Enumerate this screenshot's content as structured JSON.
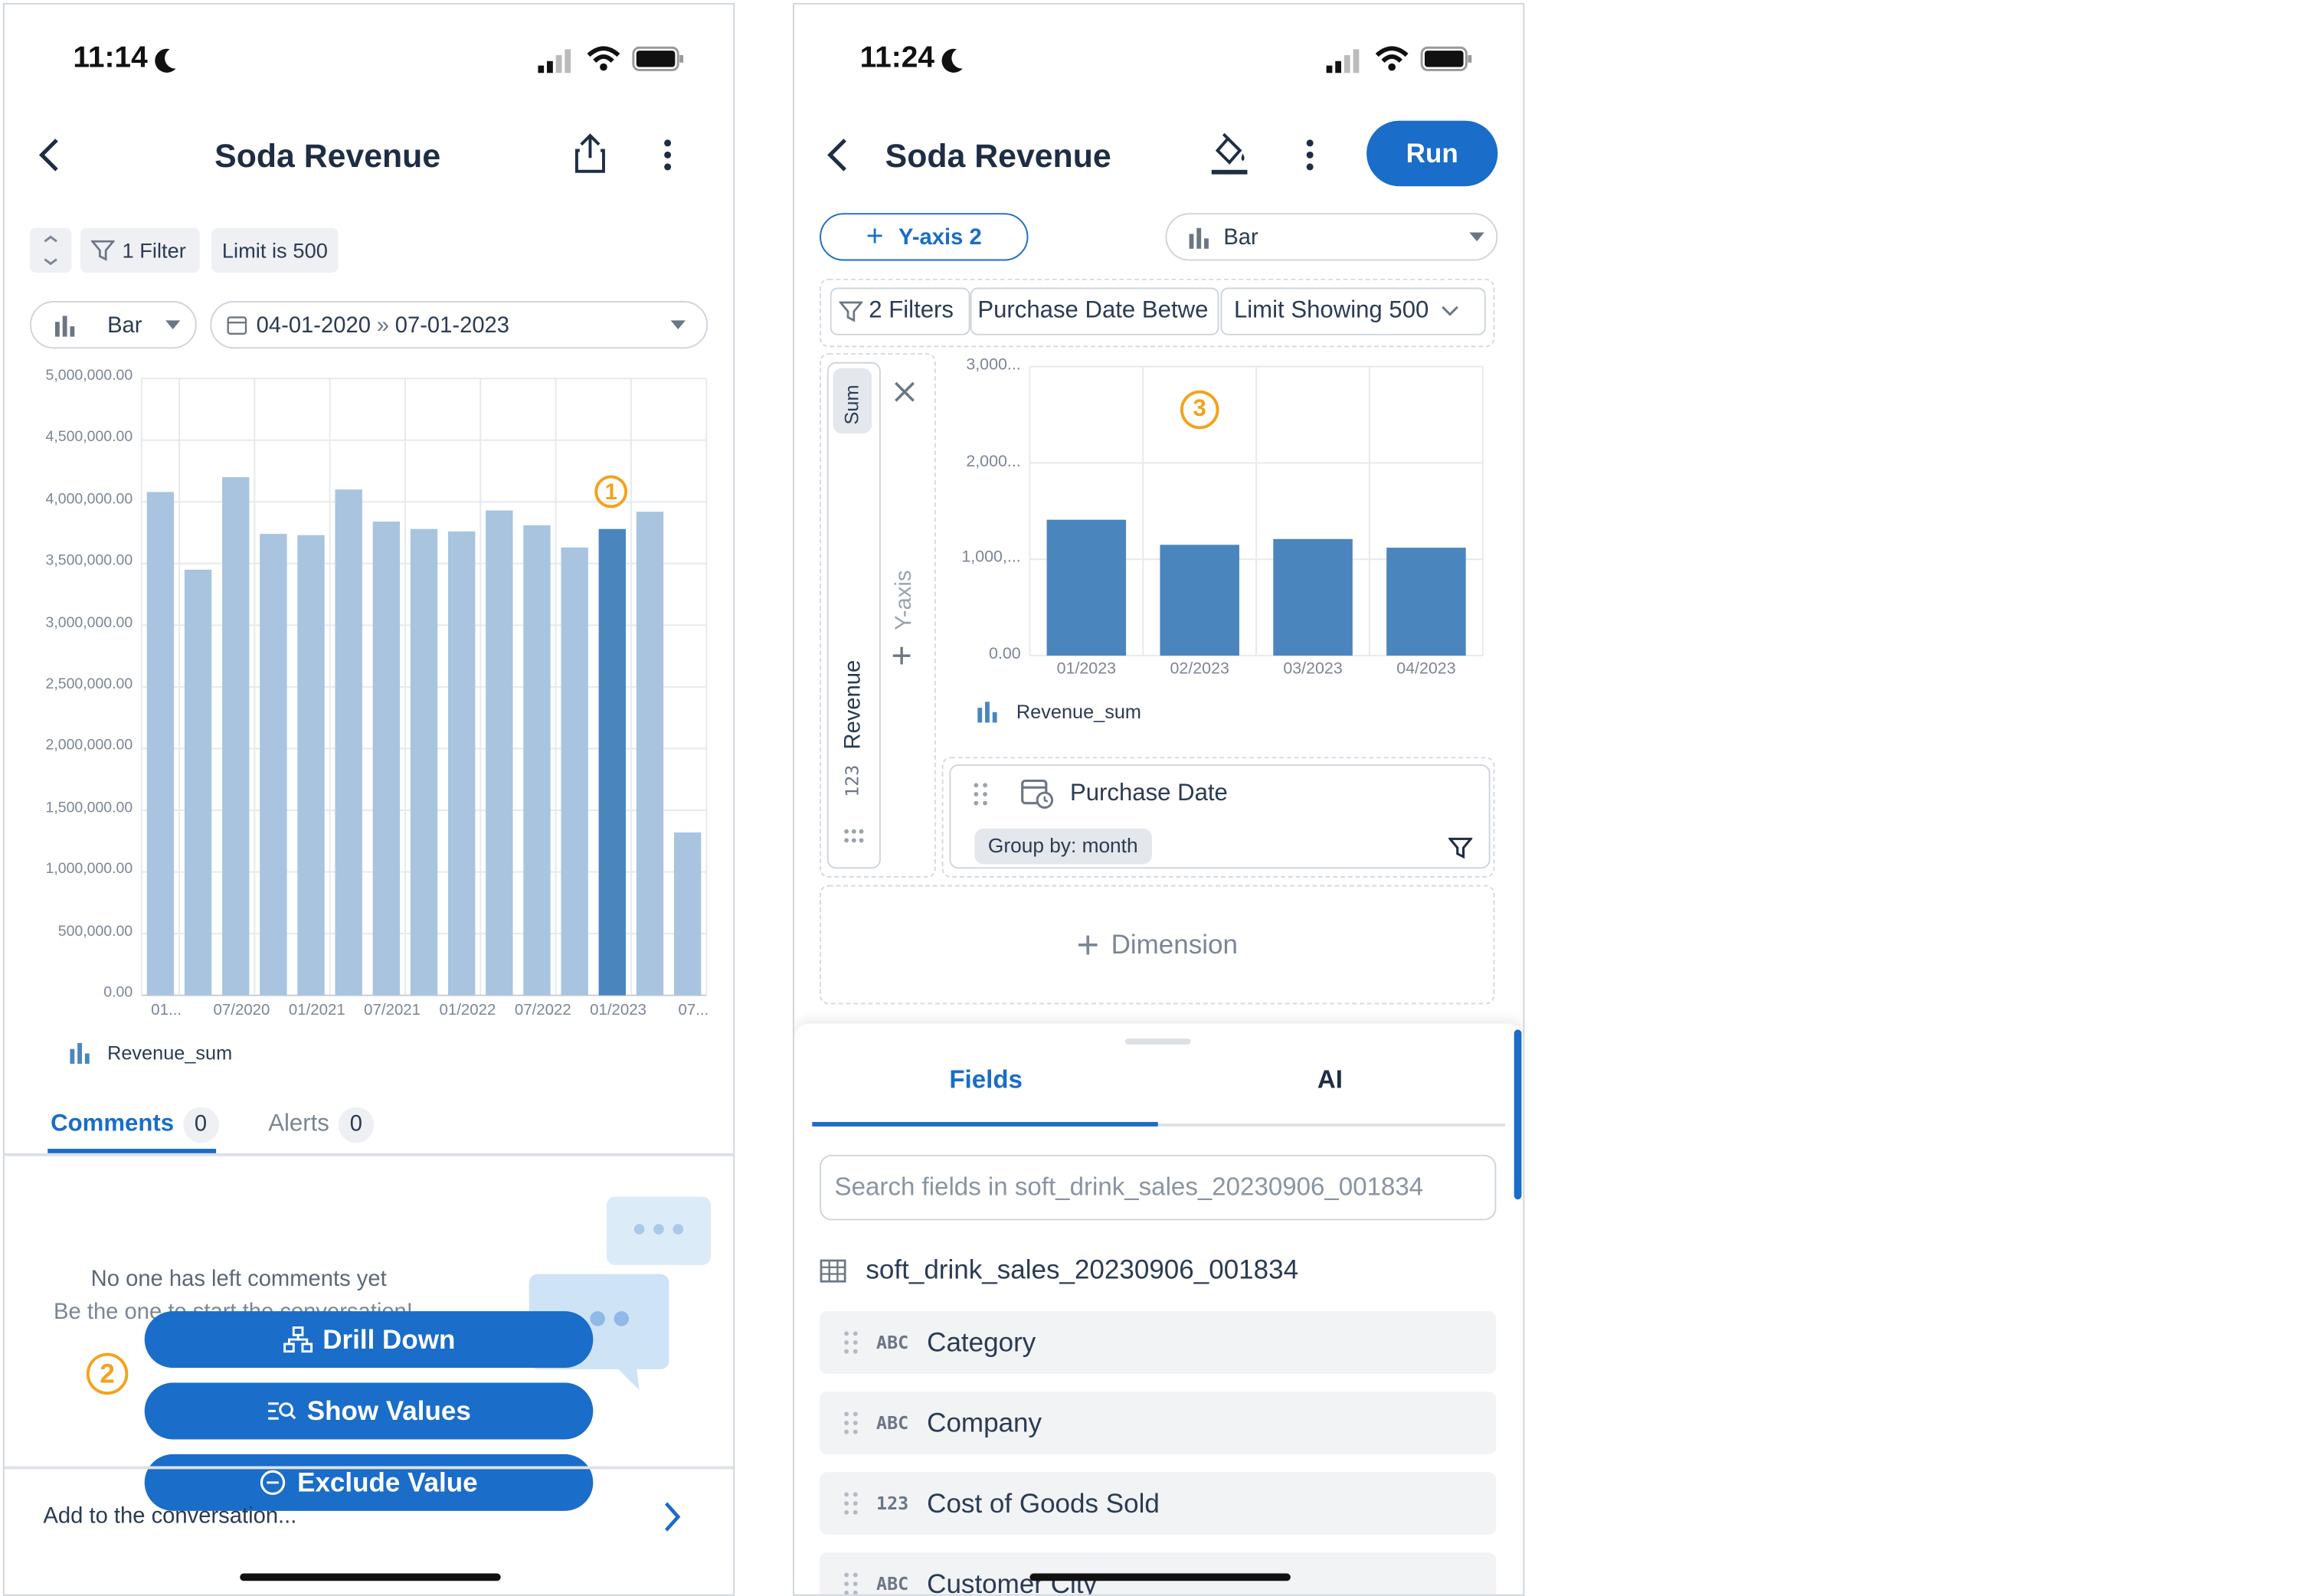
{
  "left": {
    "status_time": "11:14",
    "title": "Soda Revenue",
    "filter_chip": "1 Filter",
    "limit_prefix": "Limit is",
    "limit_value": "500",
    "chart_type": "Bar",
    "date_range_start": "04-01-2020",
    "date_range_end": "07-01-2023",
    "legend": "Revenue_sum",
    "tabs": [
      {
        "label": "Comments",
        "count": "0"
      },
      {
        "label": "Alerts",
        "count": "0"
      }
    ],
    "empty_title": "No one has left comments yet",
    "empty_sub": "Be the one to start the conversation!",
    "actions": [
      "Drill Down",
      "Show Values",
      "Exclude Value"
    ],
    "composer_placeholder": "Add to the conversation...",
    "annotations": [
      "1",
      "2"
    ]
  },
  "right": {
    "status_time": "11:24",
    "title": "Soda Revenue",
    "run_label": "Run",
    "y_axis_button": "Y-axis 2",
    "chart_type": "Bar",
    "filters_chip": "2 Filters",
    "filter_desc": "Purchase Date Betwe",
    "limit_chip": "Limit Showing 500",
    "measure_agg": "Sum",
    "measure_name": "Revenue",
    "measure_type": "123",
    "y_axis_label": "Y-axis",
    "legend": "Revenue_sum",
    "dimension_name": "Purchase Date",
    "group_by": "Group by: month",
    "add_dimension": "Dimension",
    "panel_tabs": [
      "Fields",
      "AI"
    ],
    "search_placeholder": "Search fields in soft_drink_sales_20230906_001834",
    "table_name": "soft_drink_sales_20230906_001834",
    "fields": [
      {
        "type": "ABC",
        "name": "Category"
      },
      {
        "type": "ABC",
        "name": "Company"
      },
      {
        "type": "123",
        "name": "Cost of Goods Sold"
      },
      {
        "type": "ABC",
        "name": "Customer City"
      }
    ],
    "annotation": "3"
  },
  "chart_data": [
    {
      "type": "bar",
      "series": [
        {
          "name": "Revenue_sum",
          "values": [
            4080000,
            3450000,
            4200000,
            3740000,
            3730000,
            4100000,
            3840000,
            3780000,
            3760000,
            3930000,
            3810000,
            3630000,
            3780000,
            3920000,
            1320000
          ]
        }
      ],
      "highlighted_index": 12,
      "x_tick_labels": [
        "01...",
        "07/2020",
        "01/2021",
        "07/2021",
        "01/2022",
        "07/2022",
        "01/2023",
        "07..."
      ],
      "y_tick_labels": [
        "5,000,000.00",
        "4,500,000.00",
        "4,000,000.00",
        "3,500,000.00",
        "3,000,000.00",
        "2,500,000.00",
        "2,000,000.00",
        "1,500,000.00",
        "1,000,000.00",
        "500,000.00",
        "0.00"
      ],
      "ylim": [
        0,
        5000000
      ],
      "grid": true,
      "legend": "bottom-left"
    },
    {
      "type": "bar",
      "categories": [
        "01/2023",
        "02/2023",
        "03/2023",
        "04/2023"
      ],
      "series": [
        {
          "name": "Revenue_sum",
          "values": [
            1410,
            1150,
            1210,
            1120
          ]
        }
      ],
      "y_tick_labels": [
        "3,000...",
        "2,000...",
        "1,000,...",
        "0.00"
      ],
      "ylim": [
        0,
        3000
      ],
      "grid": true,
      "legend": "bottom-left"
    }
  ],
  "colors": {
    "accent": "#1a6dc8",
    "bar_light": "#a9c4df",
    "bar_dark": "#4a86bd",
    "bar_right": "#4a86bd",
    "annotation": "#f4a21c"
  }
}
